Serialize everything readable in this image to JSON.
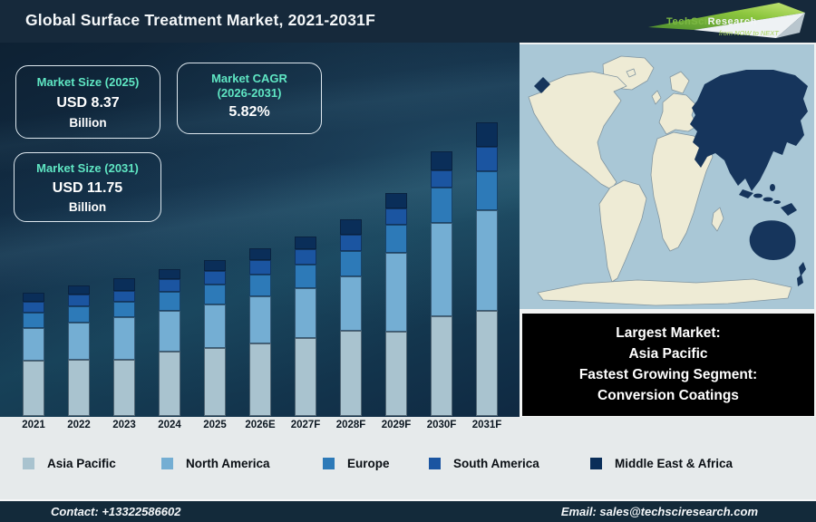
{
  "header": {
    "title": "Global Surface Treatment Market, 2021-2031F",
    "logo": {
      "brand_primary": "TechSci",
      "brand_secondary": "Research",
      "tagline": "from NOW to NEXT"
    }
  },
  "info_boxes": [
    {
      "title": "Market Size (2025)",
      "value": "USD 8.37",
      "unit": "Billion"
    },
    {
      "title": "Market CAGR",
      "subtitle": "(2026-2031)",
      "value": "5.82%"
    },
    {
      "title": "Market Size (2031)",
      "value": "USD 11.75",
      "unit": "Billion"
    }
  ],
  "chart_data": {
    "type": "bar",
    "stacked": true,
    "title": "Global Surface Treatment Market, 2021-2031F",
    "categories": [
      "2021",
      "2022",
      "2023",
      "2024",
      "2025",
      "2026E",
      "2027F",
      "2028F",
      "2029F",
      "2030F",
      "2031F"
    ],
    "series": [
      {
        "name": "Asia Pacific",
        "color": "#a9c3cf",
        "values": [
          61,
          62,
          62,
          71,
          75,
          80,
          86,
          94,
          93,
          110,
          116
        ]
      },
      {
        "name": "North America",
        "color": "#74aed3",
        "values": [
          36,
          41,
          47,
          45,
          48,
          52,
          55,
          60,
          87,
          103,
          111
        ]
      },
      {
        "name": "Europe",
        "color": "#2d7ab8",
        "values": [
          17,
          18,
          17,
          21,
          22,
          24,
          26,
          28,
          31,
          39,
          43
        ]
      },
      {
        "name": "South America",
        "color": "#1b55a1",
        "values": [
          12,
          13,
          12,
          14,
          15,
          16,
          17,
          18,
          18,
          19,
          27
        ]
      },
      {
        "name": "Middle East & Africa",
        "color": "#0a2e59",
        "values": [
          10,
          10,
          14,
          11,
          12,
          13,
          14,
          17,
          17,
          21,
          27
        ]
      }
    ],
    "value_axis": "unlabeled; series values are estimated relative bar-segment heights in pixels",
    "legend_position": "bottom",
    "annotations": {
      "market_size_2025_usd_billion": 8.37,
      "market_size_2031_usd_billion": 11.75,
      "cagr_2026_2031_percent": 5.82
    }
  },
  "map": {
    "ocean_color": "#a9c7d6",
    "land_color": "#eeebd5",
    "highlight_color": "#16355c"
  },
  "callout": {
    "lines": [
      "Largest Market:",
      "Asia Pacific",
      "Fastest Growing Segment:",
      "Conversion Coatings"
    ]
  },
  "footer": {
    "contact": "Contact: +13322586602",
    "email": "Email: sales@techsciresearch.com"
  }
}
